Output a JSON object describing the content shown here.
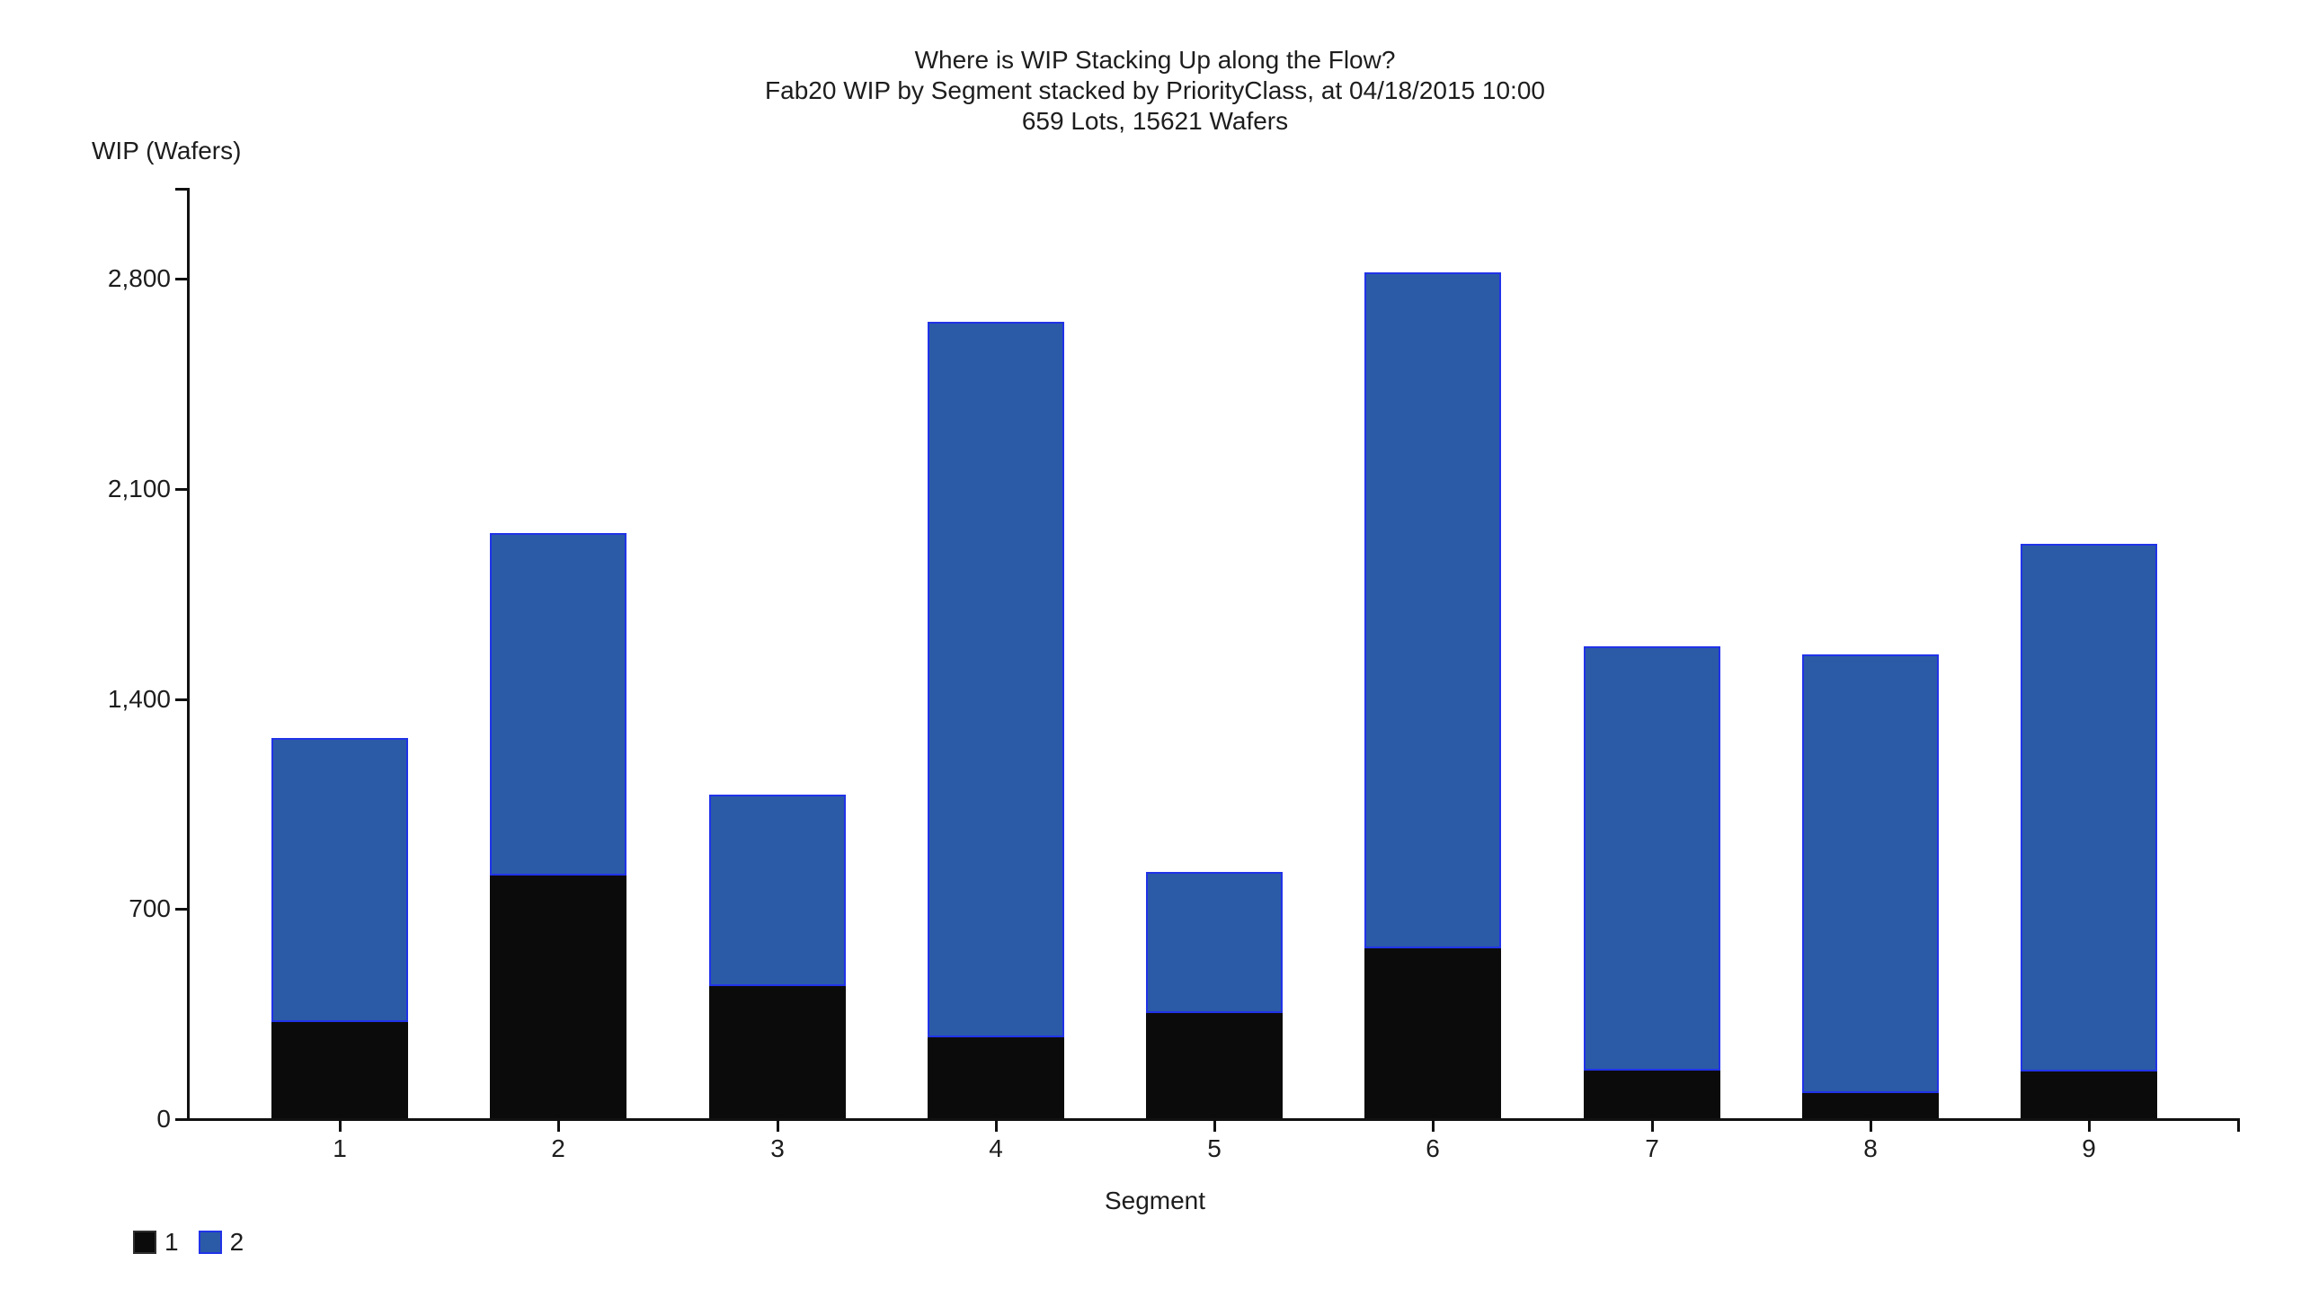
{
  "chart_data": {
    "type": "bar",
    "stacked": true,
    "title": "Where is WIP Stacking Up along the Flow?",
    "subtitle": "Fab20 WIP by Segment stacked by PriorityClass, at 04/18/2015 10:00",
    "subtitle2": "659 Lots, 15621 Wafers",
    "xlabel": "Segment",
    "ylabel": "WIP (Wafers)",
    "categories": [
      "1",
      "2",
      "3",
      "4",
      "5",
      "6",
      "7",
      "8",
      "9"
    ],
    "series": [
      {
        "name": "1",
        "color": "#0b0b0b",
        "values": [
          320,
          810,
          440,
          270,
          350,
          565,
          160,
          85,
          155
        ]
      },
      {
        "name": "2",
        "color": "#2b5ba7",
        "values": [
          946,
          1140,
          638,
          2385,
          470,
          2253,
          1414,
          1462,
          1758
        ]
      }
    ],
    "totals": [
      1266,
      1950,
      1078,
      2655,
      820,
      2818,
      1574,
      1547,
      1913
    ],
    "lots": 659,
    "wafers": 15621,
    "ylim": [
      0,
      3100
    ],
    "yticks": [
      0,
      700,
      1400,
      2100,
      2800
    ],
    "ytick_labels": [
      "0",
      "700",
      "1,400",
      "2,100",
      "2,800"
    ],
    "grid": false,
    "legend_position": "bottom-left"
  },
  "legend": {
    "items": [
      {
        "label": "1",
        "color": "#0b0b0b"
      },
      {
        "label": "2",
        "color": "#2b5ba7"
      }
    ]
  },
  "colors": {
    "series1_fill": "#0b0b0b",
    "series2_fill": "#2b5ba7",
    "series2_stroke": "#2133e8",
    "axis": "#111111",
    "text": "#1d1d1d",
    "background": "#ffffff"
  }
}
